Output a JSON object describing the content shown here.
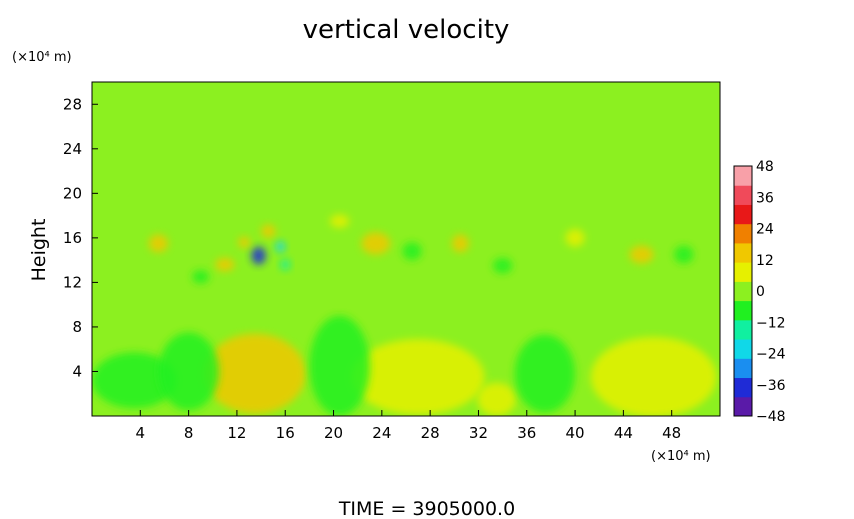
{
  "chart_data": {
    "type": "heatmap",
    "title": "vertical velocity",
    "ylabel": "Height",
    "xlabel": "",
    "x_unit": "(×10⁴ m)",
    "y_unit": "(×10⁴ m)",
    "xlim": [
      0,
      52
    ],
    "ylim": [
      0,
      30
    ],
    "x_ticks": [
      4,
      8,
      12,
      16,
      20,
      24,
      28,
      32,
      36,
      40,
      44,
      48
    ],
    "y_ticks": [
      4,
      8,
      12,
      16,
      20,
      24,
      28
    ],
    "colorbar": {
      "range": [
        -48,
        48
      ],
      "ticks": [
        48,
        36,
        24,
        12,
        0,
        -12,
        -24,
        -36,
        -48
      ],
      "colors": [
        "#5a1aa8",
        "#1f2bd6",
        "#1a8ef0",
        "#10d8e8",
        "#10f0a0",
        "#20f020",
        "#8cf020",
        "#e6f000",
        "#f0c800",
        "#f08000",
        "#e81818",
        "#f04a5a",
        "#f8a0a8"
      ]
    },
    "background_value": 0,
    "features": [
      {
        "x": 13.5,
        "y": 3.8,
        "sx": 4.2,
        "sy": 3.6,
        "value": 12
      },
      {
        "x": 27,
        "y": 3.5,
        "sx": 5.5,
        "sy": 3.4,
        "value": 8
      },
      {
        "x": 46.5,
        "y": 3.5,
        "sx": 5.2,
        "sy": 3.6,
        "value": 9
      },
      {
        "x": 33.5,
        "y": 1.5,
        "sx": 1.6,
        "sy": 1.5,
        "value": 9
      },
      {
        "x": 3.5,
        "y": 3.2,
        "sx": 3.5,
        "sy": 2.5,
        "value": -7
      },
      {
        "x": 20.5,
        "y": 4.5,
        "sx": 2.5,
        "sy": 4.5,
        "value": -6
      },
      {
        "x": 37.5,
        "y": 3.8,
        "sx": 2.5,
        "sy": 3.5,
        "value": -8
      },
      {
        "x": 8,
        "y": 4,
        "sx": 2.5,
        "sy": 3.5,
        "value": -4
      },
      {
        "x": 13.8,
        "y": 14.4,
        "sx": 0.6,
        "sy": 0.8,
        "value": -38
      },
      {
        "x": 15.6,
        "y": 15.2,
        "sx": 0.4,
        "sy": 0.5,
        "value": -20
      },
      {
        "x": 16,
        "y": 13.6,
        "sx": 0.4,
        "sy": 0.5,
        "value": -16
      },
      {
        "x": 12.6,
        "y": 15.6,
        "sx": 0.5,
        "sy": 0.5,
        "value": 18
      },
      {
        "x": 11,
        "y": 13.6,
        "sx": 0.8,
        "sy": 0.6,
        "value": 16
      },
      {
        "x": 14.6,
        "y": 16.6,
        "sx": 0.6,
        "sy": 0.6,
        "value": 14
      },
      {
        "x": 23.5,
        "y": 15.5,
        "sx": 1.2,
        "sy": 1,
        "value": 18
      },
      {
        "x": 26.5,
        "y": 14.8,
        "sx": 0.8,
        "sy": 0.8,
        "value": -10
      },
      {
        "x": 30.5,
        "y": 15.5,
        "sx": 0.7,
        "sy": 0.8,
        "value": 14
      },
      {
        "x": 45.5,
        "y": 14.5,
        "sx": 1,
        "sy": 0.8,
        "value": 14
      },
      {
        "x": 5.5,
        "y": 15.5,
        "sx": 0.8,
        "sy": 0.8,
        "value": 12
      },
      {
        "x": 40,
        "y": 16,
        "sx": 0.8,
        "sy": 0.8,
        "value": 10
      },
      {
        "x": 49,
        "y": 14.5,
        "sx": 0.8,
        "sy": 0.8,
        "value": -10
      },
      {
        "x": 20.5,
        "y": 17.5,
        "sx": 0.8,
        "sy": 0.6,
        "value": 10
      },
      {
        "x": 34,
        "y": 13.5,
        "sx": 0.8,
        "sy": 0.7,
        "value": -8
      },
      {
        "x": 9,
        "y": 12.5,
        "sx": 0.7,
        "sy": 0.6,
        "value": -8
      }
    ],
    "footer": "TIME = 3905000.0"
  }
}
